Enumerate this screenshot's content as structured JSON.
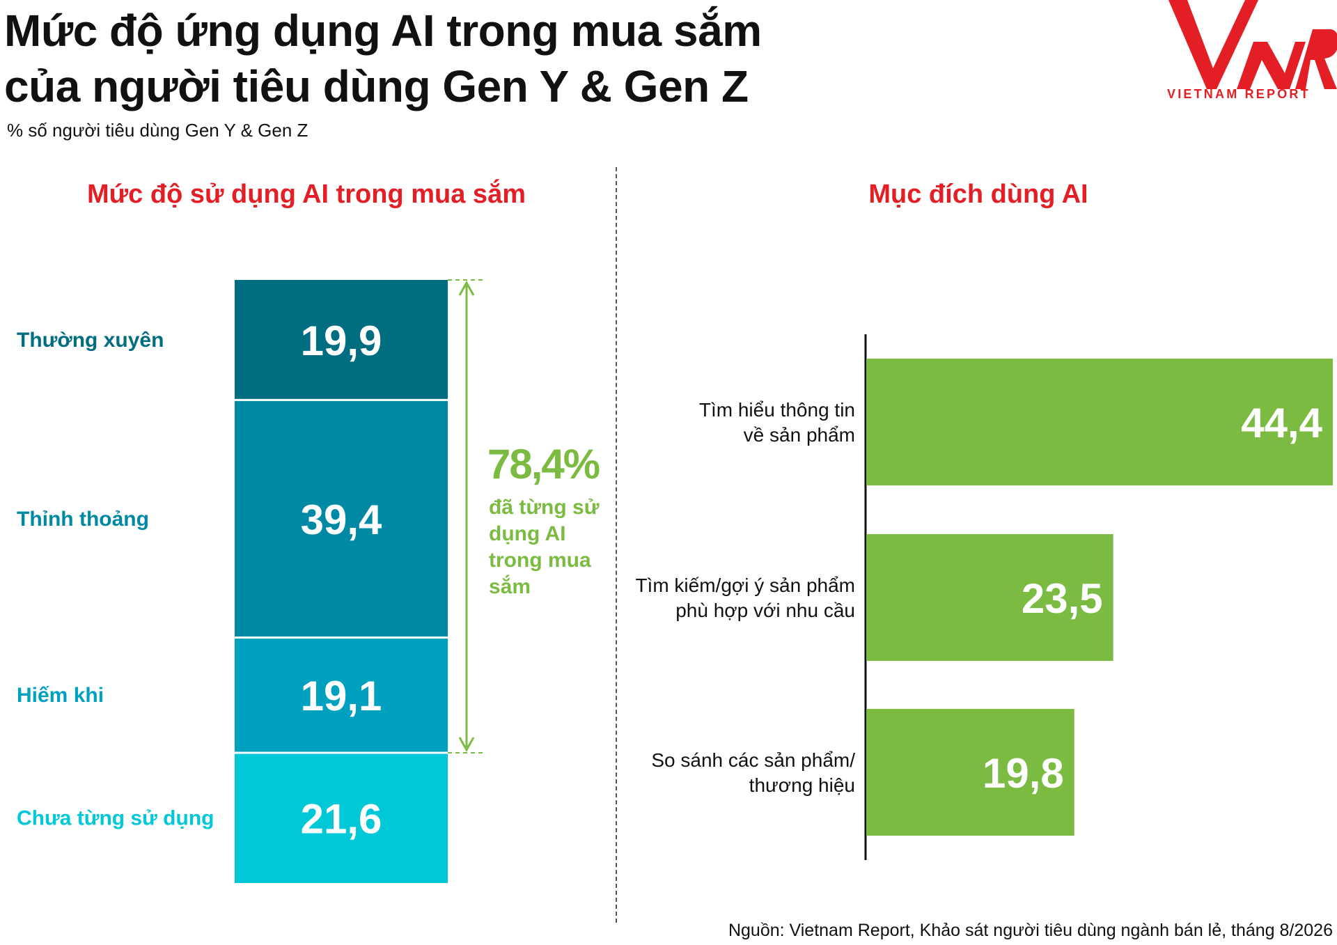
{
  "title_line1": "Mức độ ứng dụng AI trong mua sắm",
  "title_line2": "của người tiêu dùng Gen Y & Gen Z",
  "subtitle": "% số người tiêu dùng Gen Y & Gen Z",
  "logo": {
    "text": "VIETNAM REPORT",
    "mark": "VNR",
    "color": "#e31e25"
  },
  "total": {
    "value": "78,4%",
    "note": "đã từng sử dụng AI trong mua sắm"
  },
  "source": "Nguồn: Vietnam Report, Khảo sát người tiêu dùng ngành bán lẻ, tháng 8/2026",
  "colors": {
    "accent_red": "#e31e25",
    "bar_green": "#7cbb42",
    "stack": [
      "#006d81",
      "#0089a5",
      "#00a1bf",
      "#00c8d7"
    ]
  },
  "chart_data": [
    {
      "type": "bar",
      "stacked": true,
      "title": "Mức độ sử dụng AI trong mua sắm",
      "categories": [
        "Thường xuyên",
        "Thỉnh thoảng",
        "Hiếm khi",
        "Chưa từng sử dụng"
      ],
      "values": [
        19.9,
        39.4,
        19.1,
        21.6
      ],
      "labels": [
        "19,9",
        "39,4",
        "19,1",
        "21,6"
      ]
    },
    {
      "type": "bar",
      "orientation": "horizontal",
      "title": "Mục đích dùng AI",
      "categories": [
        [
          "Tìm hiểu thông tin",
          "về sản phẩm"
        ],
        [
          "Tìm kiếm/gợi ý sản phẩm",
          "phù hợp với nhu cầu"
        ],
        [
          "So sánh các sản phẩm/",
          "thương hiệu"
        ]
      ],
      "values": [
        44.4,
        23.5,
        19.8
      ],
      "labels": [
        "44,4",
        "23,5",
        "19,8"
      ],
      "xlim": [
        0,
        44.4
      ]
    }
  ]
}
